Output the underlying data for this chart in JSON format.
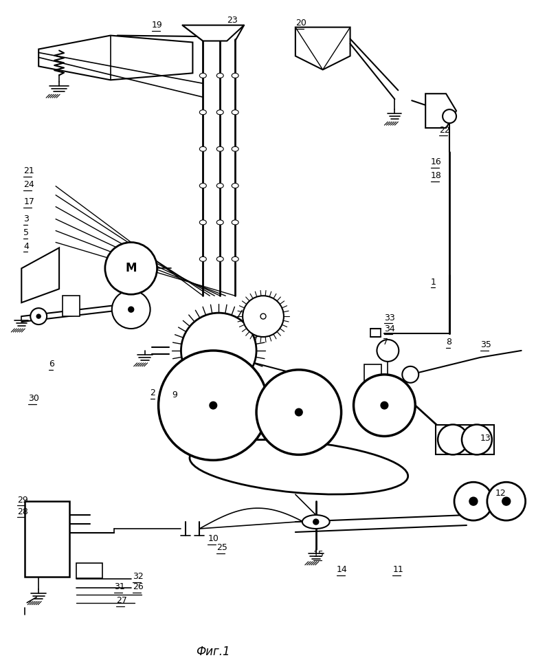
{
  "caption": "Фиг.1",
  "bg_color": "#ffffff",
  "line_color": "#000000",
  "figsize": [
    7.8,
    9.76
  ],
  "dpi": 100
}
